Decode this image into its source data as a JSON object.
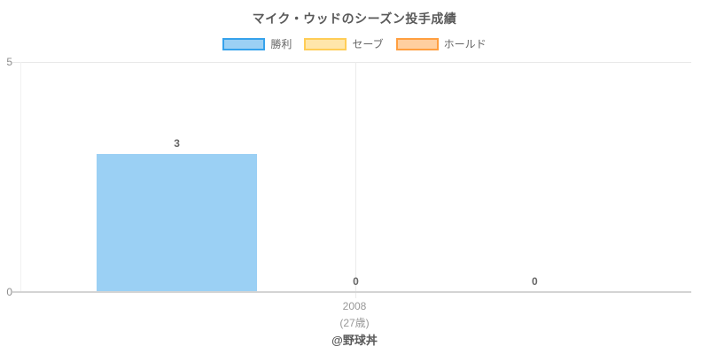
{
  "chart_data": {
    "type": "bar",
    "title": "マイク・ウッドのシーズン投手成績",
    "categories": [
      {
        "label": "2008",
        "sublabel": "(27歳)"
      }
    ],
    "series": [
      {
        "name": "勝利",
        "values": [
          3
        ],
        "fill": "#9bd0f4",
        "border": "#36a2eb"
      },
      {
        "name": "セーブ",
        "values": [
          0
        ],
        "fill": "#ffe6aa",
        "border": "#ffcd56"
      },
      {
        "name": "ホールド",
        "values": [
          0
        ],
        "fill": "#ffcf9f",
        "border": "#ff9f40"
      }
    ],
    "value_labels": [
      "3",
      "0",
      "0"
    ],
    "yticks": [
      "0",
      "5"
    ],
    "ylim": [
      0,
      5
    ],
    "grid": "gridline at y-max, vertical gridline at category center",
    "legend_position": "top"
  },
  "footer": {
    "credit": "@野球丼"
  }
}
